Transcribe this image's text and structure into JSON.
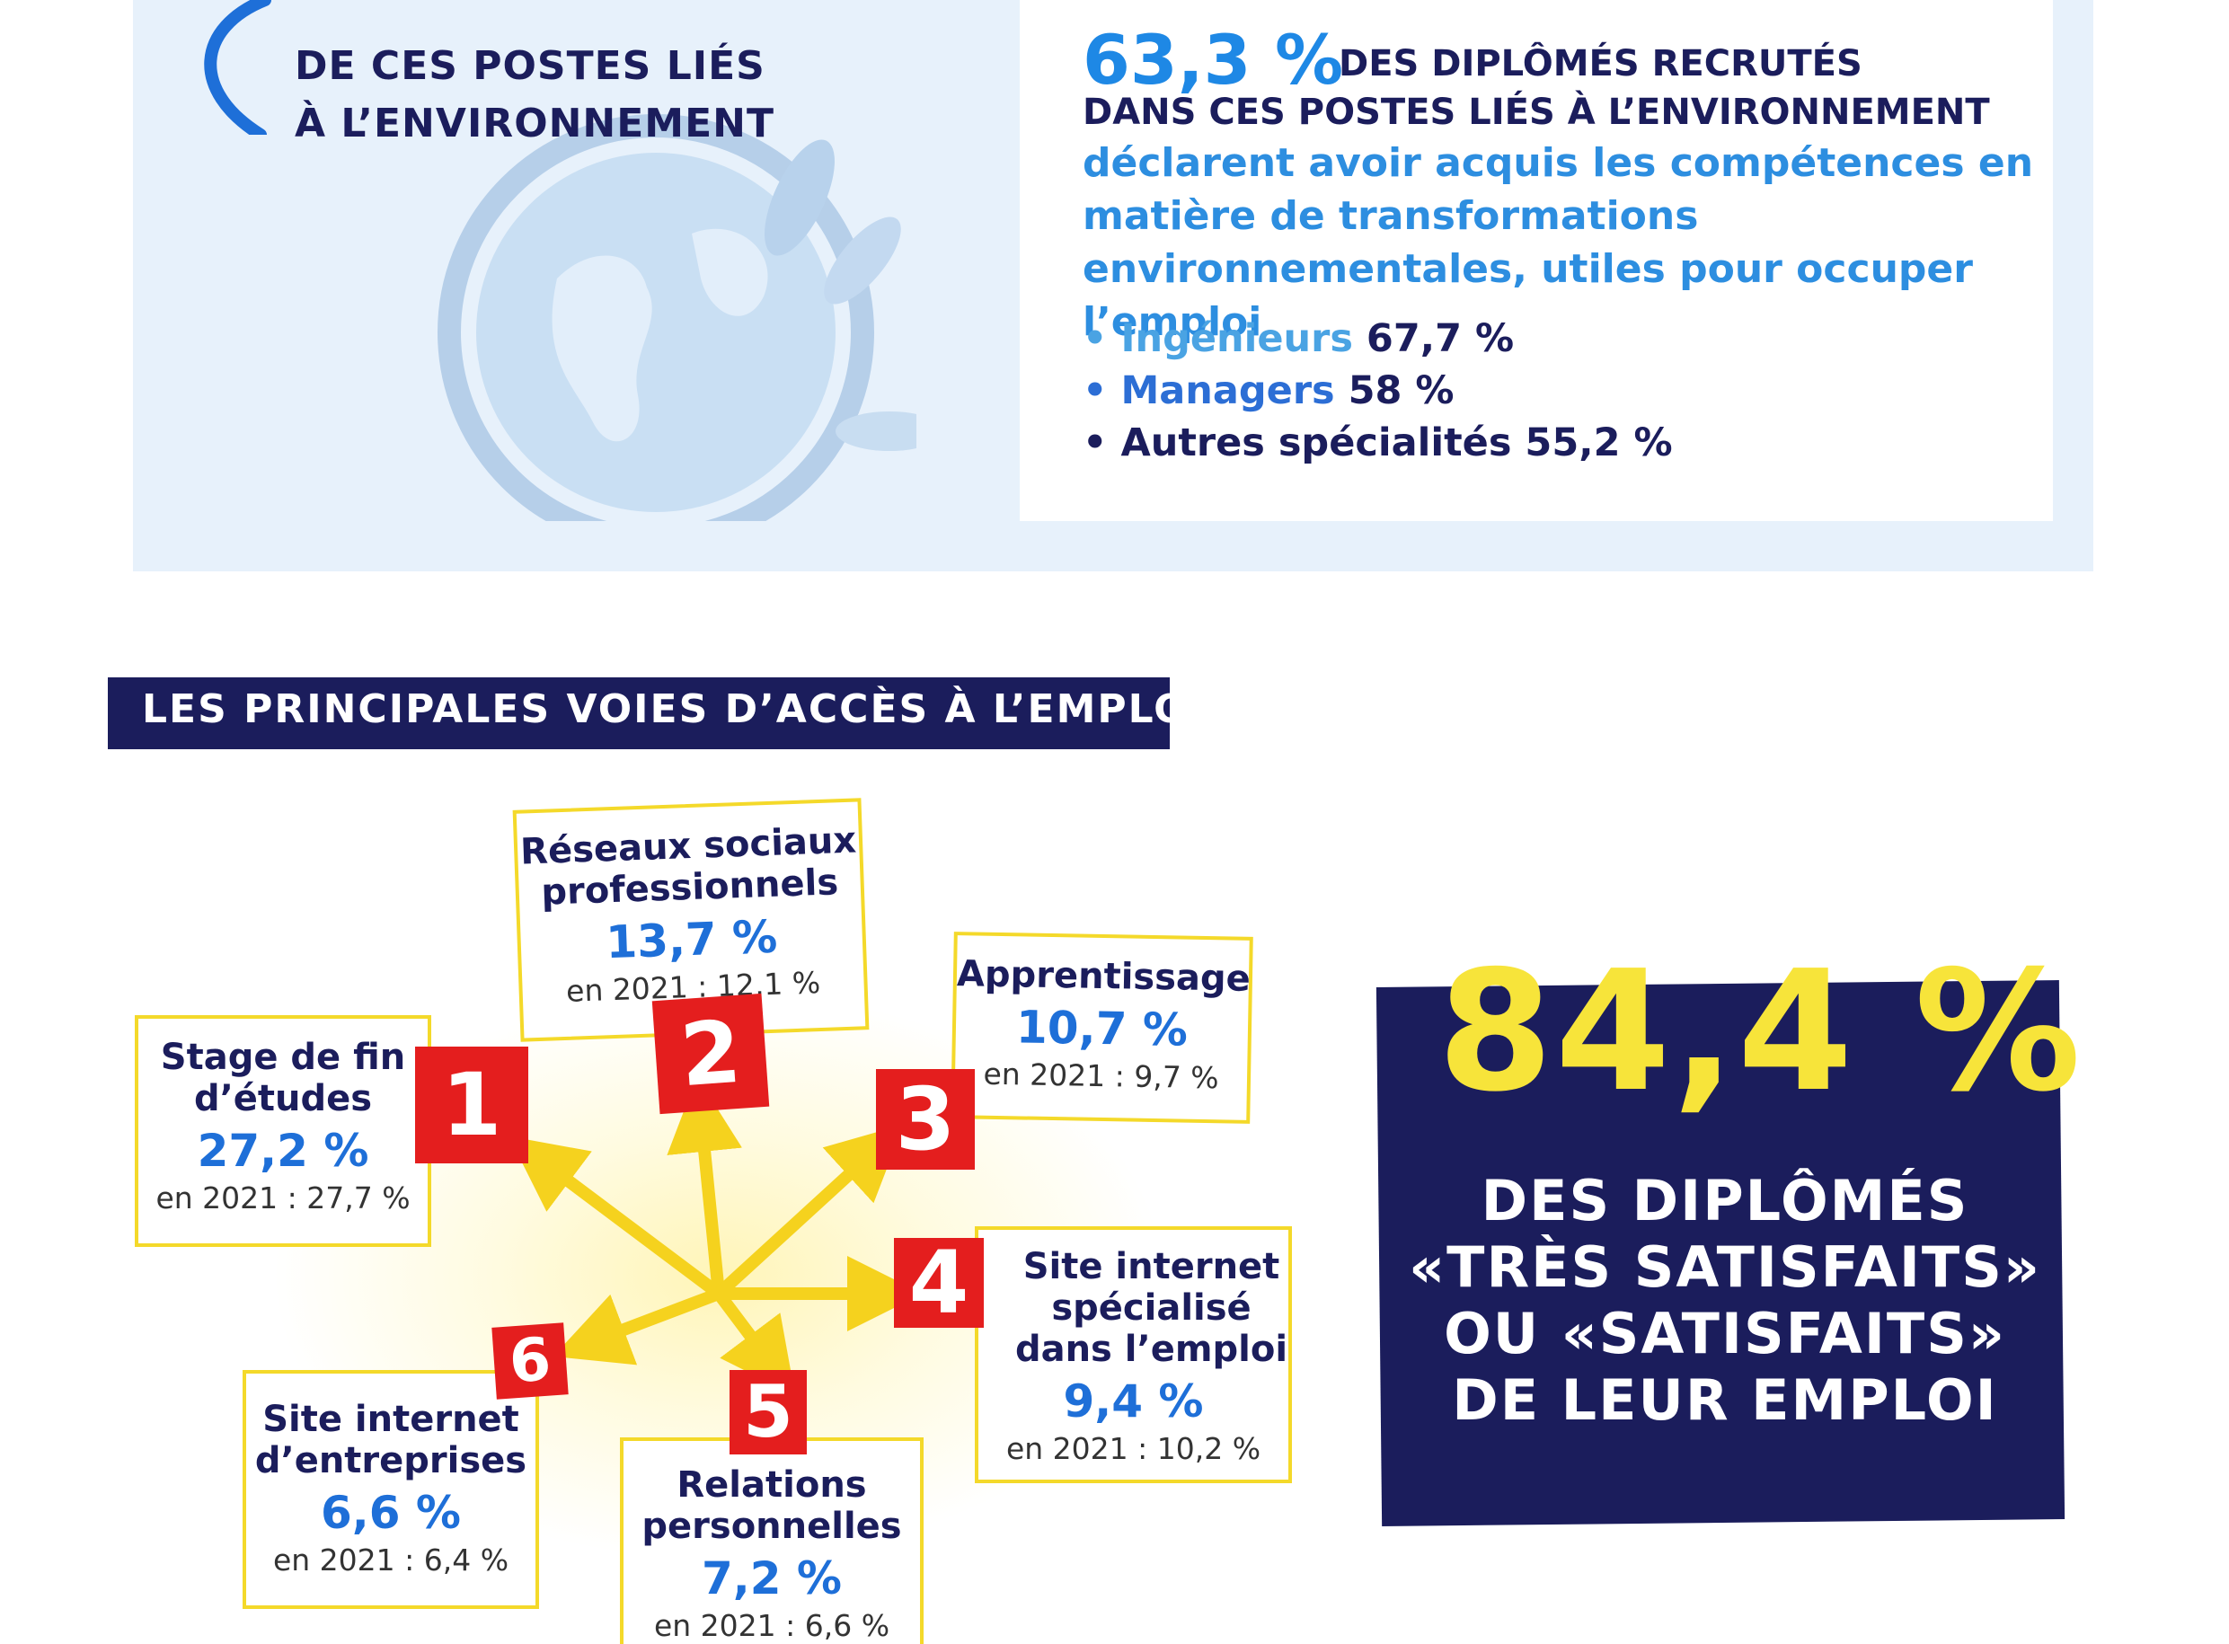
{
  "env_block": {
    "line1_prefix": "DE CES POSTES ",
    "line1_emph": "LIÉS",
    "line2": "À L’ENVIRONNEMENT"
  },
  "competences": {
    "pct": "63,3 %",
    "head1": "DES DIPLÔMÉS RECRUTÉS",
    "head2": "DANS CES POSTES LIÉS À L’ENVIRONNEMENT",
    "body": "déclarent avoir acquis les compétences en matière de transformations environnementales, utiles pour occuper l’emploi",
    "bullets": [
      {
        "label": "• Ingénieurs",
        "value": "67,7 %"
      },
      {
        "label": "• Managers",
        "value": "58 %"
      },
      {
        "label": "• Autres spécialités",
        "value": "55,2 %"
      }
    ]
  },
  "section": {
    "title": "LES PRINCIPALES VOIES D’ACCÈS À L’EMPLOI"
  },
  "channels": [
    {
      "num": "1",
      "label": "Stage de fin d’études",
      "value": "27,2 %",
      "prev": "en 2021 : 27,7 %"
    },
    {
      "num": "2",
      "label": "Réseaux sociaux professionnels",
      "value": "13,7 %",
      "prev": "en 2021 : 12,1 %"
    },
    {
      "num": "3",
      "label": "Apprentissage",
      "value": "10,7 %",
      "prev": "en 2021 : 9,7 %"
    },
    {
      "num": "4",
      "label": "Site internet spécialisé dans l’emploi",
      "value": "9,4 %",
      "prev": "en 2021 : 10,2 %"
    },
    {
      "num": "5",
      "label": "Relations personnelles",
      "value": "7,2 %",
      "prev": "en 2021 : 6,6 %"
    },
    {
      "num": "6",
      "label": "Site internet d’entreprises",
      "value": "6,6 %",
      "prev": "en 2021 : 6,4 %"
    }
  ],
  "satisfaction": {
    "pct": "84,4 %",
    "line1": "DES DIPLÔMÉS",
    "line2": "«TRÈS SATISFAITS»",
    "line3": "OU «SATISFAITS»",
    "line4": "DE LEUR EMPLOI"
  },
  "colors": {
    "navy": "#1b1d5c",
    "blue": "#1e88e5",
    "yellow": "#f7e43a",
    "red": "#e41e1e",
    "panel": "#e7f1fb"
  }
}
